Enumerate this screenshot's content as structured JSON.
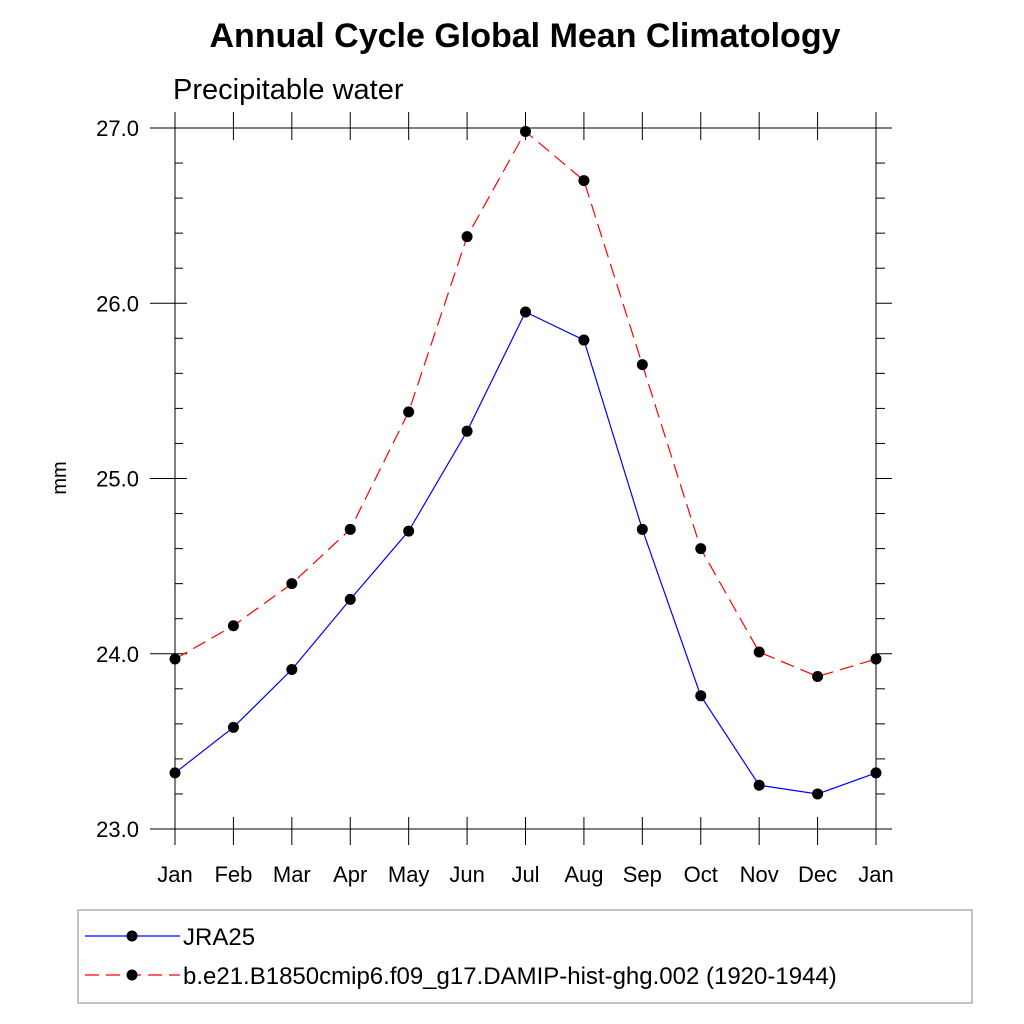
{
  "colors": {
    "background": "#ffffff",
    "axis": "#000000",
    "series_1": "#0000ff",
    "series_2": "#ff0000",
    "marker": "#000000"
  },
  "chart_data": {
    "type": "line",
    "title": "Annual Cycle Global Mean Climatology",
    "subtitle": "Precipitable water",
    "xlabel": "",
    "ylabel": "mm",
    "categories": [
      "Jan",
      "Feb",
      "Mar",
      "Apr",
      "May",
      "Jun",
      "Jul",
      "Aug",
      "Sep",
      "Oct",
      "Nov",
      "Dec",
      "Jan"
    ],
    "ylim": [
      23.0,
      27.0
    ],
    "y_major_ticks": [
      23.0,
      24.0,
      25.0,
      26.0,
      27.0
    ],
    "y_tick_labels": [
      "23.0",
      "24.0",
      "25.0",
      "26.0",
      "27.0"
    ],
    "y_minor_step": 0.2,
    "grid": false,
    "legend_position": "bottom",
    "series": [
      {
        "name": "JRA25",
        "line_style": "solid",
        "color": "#0000ff",
        "values": [
          23.32,
          23.58,
          23.91,
          24.31,
          24.7,
          25.27,
          25.95,
          25.79,
          24.71,
          23.76,
          23.25,
          23.2,
          23.32
        ]
      },
      {
        "name": "b.e21.B1850cmip6.f09_g17.DAMIP-hist-ghg.002 (1920-1944)",
        "line_style": "dashed",
        "color": "#ff0000",
        "values": [
          23.97,
          24.16,
          24.4,
          24.71,
          25.38,
          26.38,
          26.98,
          26.7,
          25.65,
          24.6,
          24.01,
          23.87,
          23.97
        ]
      }
    ]
  }
}
